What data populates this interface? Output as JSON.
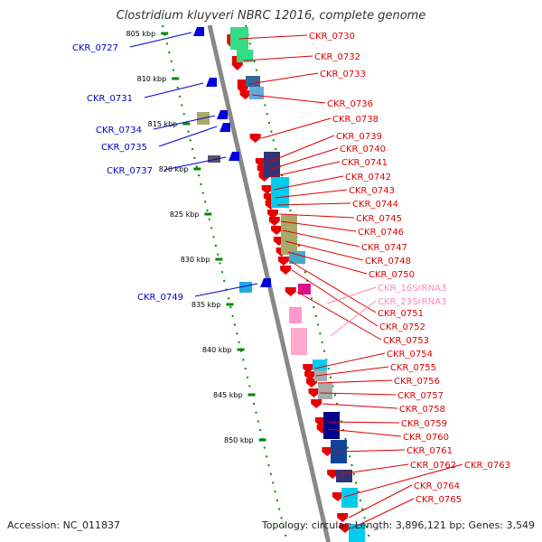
{
  "title": "Clostridium kluyveri NBRC 12016, complete genome",
  "footer": {
    "accession": "Accession: NC_011837",
    "topology": "Topology: circular; Length: 3,896,121 bp; Genes: 3,549"
  },
  "colors": {
    "plus_strand_label": "#dd0000",
    "minus_strand_label": "#0000cc",
    "rrna_label": "#ff88bb",
    "backbone": "#888888",
    "tick": "#008800"
  },
  "ticks": [
    {
      "label": "805 kbp"
    },
    {
      "label": "810 kbp"
    },
    {
      "label": "815 kbp"
    },
    {
      "label": "820 kbp"
    },
    {
      "label": "825 kbp"
    },
    {
      "label": "830 kbp"
    },
    {
      "label": "835 kbp"
    },
    {
      "label": "840 kbp"
    },
    {
      "label": "845 kbp"
    },
    {
      "label": "850 kbp"
    }
  ],
  "minus_labels": [
    "CKR_0727",
    "CKR_0731",
    "CKR_0734",
    "CKR_0735",
    "CKR_0737",
    "CKR_0749"
  ],
  "plus_labels": [
    "CKR_0730",
    "CKR_0732",
    "CKR_0733",
    "CKR_0736",
    "CKR_0738",
    "CKR_0739",
    "CKR_0740",
    "CKR_0741",
    "CKR_0742",
    "CKR_0743",
    "CKR_0744",
    "CKR_0745",
    "CKR_0746",
    "CKR_0747",
    "CKR_0748",
    "CKR_0750",
    "CKR_0751",
    "CKR_0752",
    "CKR_0753",
    "CKR_0754",
    "CKR_0755",
    "CKR_0756",
    "CKR_0757",
    "CKR_0758",
    "CKR_0759",
    "CKR_0760",
    "CKR_0761",
    "CKR_0762",
    "CKR_0763",
    "CKR_0764",
    "CKR_0765"
  ],
  "rrna_labels": [
    "CKR_16SrRNA3",
    "CKR_23SrRNA3"
  ]
}
